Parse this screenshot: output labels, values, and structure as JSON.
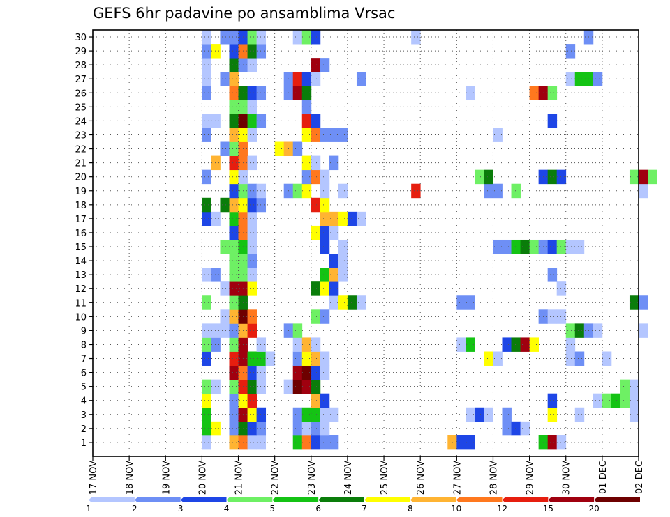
{
  "chart_data": {
    "type": "heatmap",
    "title": "GEFS 6hr padavine po ansamblima Vrsac",
    "xlabel": "",
    "ylabel": "",
    "x_ticks": [
      "17 NOV",
      "18 NOV",
      "19 NOV",
      "20 NOV",
      "21 NOV",
      "22 NOV",
      "23 NOV",
      "24 NOV",
      "25 NOV",
      "26 NOV",
      "27 NOV",
      "28 NOV",
      "29 NOV",
      "30 NOV",
      "01 DEC",
      "02 DEC"
    ],
    "y_ticks": [
      "1",
      "2",
      "3",
      "4",
      "5",
      "6",
      "7",
      "8",
      "9",
      "10",
      "11",
      "12",
      "13",
      "14",
      "15",
      "16",
      "17",
      "18",
      "19",
      "20",
      "21",
      "22",
      "23",
      "24",
      "25",
      "26",
      "27",
      "28",
      "29",
      "30"
    ],
    "xlim": [
      "17 NOV",
      "02 DEC"
    ],
    "ylim": [
      0,
      30
    ],
    "grid": true,
    "time_step_hours": 6,
    "color_levels": [
      "1",
      "2",
      "3",
      "4",
      "5",
      "6",
      "7",
      "8",
      "10",
      "12",
      "15",
      "20"
    ],
    "colors": [
      "#b4c6ff",
      "#6e8ff5",
      "#1e46e6",
      "#6ef064",
      "#14c314",
      "#0a7d0a",
      "#ffff00",
      "#ffb432",
      "#ff781e",
      "#e61e0f",
      "#a0000f",
      "#6e0000"
    ],
    "cells_note": "member: [day_offset_from_17NOV, class_index]",
    "cells": {
      "1": [
        [
          3.0,
          0
        ],
        [
          3.75,
          7
        ],
        [
          4.0,
          8
        ],
        [
          4.25,
          0
        ],
        [
          4.5,
          0
        ],
        [
          5.5,
          4
        ],
        [
          5.75,
          8
        ],
        [
          6.0,
          2
        ],
        [
          6.25,
          1
        ],
        [
          6.5,
          1
        ],
        [
          9.75,
          7
        ],
        [
          10.0,
          2
        ],
        [
          10.25,
          2
        ],
        [
          12.25,
          4
        ],
        [
          12.5,
          10
        ],
        [
          12.75,
          0
        ]
      ],
      "2": [
        [
          3.0,
          4
        ],
        [
          3.25,
          6
        ],
        [
          3.75,
          1
        ],
        [
          4.0,
          5
        ],
        [
          4.25,
          2
        ],
        [
          4.5,
          1
        ],
        [
          5.5,
          1
        ],
        [
          5.75,
          0
        ],
        [
          6.0,
          1
        ],
        [
          6.25,
          0
        ],
        [
          11.25,
          1
        ],
        [
          11.5,
          2
        ],
        [
          11.75,
          0
        ]
      ],
      "3": [
        [
          3.0,
          4
        ],
        [
          3.75,
          1
        ],
        [
          4.0,
          10
        ],
        [
          4.25,
          6
        ],
        [
          4.5,
          2
        ],
        [
          5.5,
          1
        ],
        [
          5.75,
          4
        ],
        [
          6.0,
          4
        ],
        [
          6.25,
          0
        ],
        [
          6.5,
          0
        ],
        [
          10.25,
          0
        ],
        [
          10.5,
          2
        ],
        [
          10.75,
          0
        ],
        [
          11.25,
          1
        ],
        [
          12.5,
          6
        ],
        [
          13.25,
          0
        ],
        [
          14.75,
          0
        ]
      ],
      "4": [
        [
          3.0,
          6
        ],
        [
          3.75,
          1
        ],
        [
          4.0,
          6
        ],
        [
          4.25,
          9
        ],
        [
          6.0,
          7
        ],
        [
          6.25,
          2
        ],
        [
          12.5,
          2
        ],
        [
          13.75,
          0
        ],
        [
          14.0,
          3
        ],
        [
          14.25,
          4
        ],
        [
          14.5,
          3
        ],
        [
          14.75,
          0
        ]
      ],
      "5": [
        [
          3.0,
          3
        ],
        [
          3.25,
          0
        ],
        [
          3.75,
          3
        ],
        [
          4.0,
          9
        ],
        [
          4.25,
          5
        ],
        [
          4.5,
          0
        ],
        [
          5.25,
          0
        ],
        [
          5.5,
          11
        ],
        [
          5.75,
          10
        ],
        [
          6.0,
          5
        ],
        [
          14.5,
          3
        ],
        [
          14.75,
          0
        ]
      ],
      "6": [
        [
          3.75,
          10
        ],
        [
          4.0,
          8
        ],
        [
          4.25,
          2
        ],
        [
          4.5,
          0
        ],
        [
          5.5,
          10
        ],
        [
          5.75,
          11
        ],
        [
          6.0,
          2
        ],
        [
          6.25,
          0
        ]
      ],
      "7": [
        [
          3.0,
          2
        ],
        [
          3.75,
          9
        ],
        [
          4.0,
          10
        ],
        [
          4.25,
          4
        ],
        [
          4.5,
          4
        ],
        [
          4.75,
          0
        ],
        [
          5.5,
          1
        ],
        [
          5.75,
          6
        ],
        [
          6.0,
          7
        ],
        [
          6.25,
          0
        ],
        [
          10.75,
          6
        ],
        [
          11.0,
          0
        ],
        [
          13.0,
          0
        ],
        [
          13.25,
          1
        ],
        [
          14.0,
          0
        ]
      ],
      "8": [
        [
          3.0,
          3
        ],
        [
          3.25,
          1
        ],
        [
          3.75,
          3
        ],
        [
          4.0,
          10
        ],
        [
          4.5,
          0
        ],
        [
          5.5,
          0
        ],
        [
          5.75,
          7
        ],
        [
          6.0,
          0
        ],
        [
          10.0,
          0
        ],
        [
          10.25,
          4
        ],
        [
          11.25,
          2
        ],
        [
          11.5,
          5
        ],
        [
          11.75,
          10
        ],
        [
          12.0,
          6
        ],
        [
          13.0,
          0
        ]
      ],
      "9": [
        [
          3.0,
          0
        ],
        [
          3.25,
          0
        ],
        [
          3.5,
          0
        ],
        [
          3.75,
          1
        ],
        [
          4.0,
          7
        ],
        [
          4.25,
          9
        ],
        [
          5.25,
          1
        ],
        [
          5.5,
          3
        ],
        [
          13.0,
          3
        ],
        [
          13.25,
          5
        ],
        [
          13.5,
          1
        ],
        [
          13.75,
          0
        ],
        [
          15.0,
          0
        ]
      ],
      "10": [
        [
          3.5,
          0
        ],
        [
          3.75,
          7
        ],
        [
          4.0,
          11
        ],
        [
          4.25,
          8
        ],
        [
          6.0,
          3
        ],
        [
          6.25,
          1
        ],
        [
          12.25,
          1
        ],
        [
          12.5,
          0
        ],
        [
          12.75,
          0
        ]
      ],
      "11": [
        [
          3.0,
          3
        ],
        [
          3.75,
          3
        ],
        [
          4.0,
          5
        ],
        [
          6.5,
          0
        ],
        [
          6.75,
          6
        ],
        [
          7.0,
          5
        ],
        [
          7.25,
          0
        ],
        [
          10.0,
          1
        ],
        [
          10.25,
          1
        ],
        [
          14.75,
          5
        ],
        [
          15.0,
          1
        ]
      ],
      "12": [
        [
          3.5,
          0
        ],
        [
          3.75,
          10
        ],
        [
          4.0,
          10
        ],
        [
          4.25,
          6
        ],
        [
          6.0,
          5
        ],
        [
          6.25,
          6
        ],
        [
          6.5,
          2
        ],
        [
          12.75,
          0
        ]
      ],
      "13": [
        [
          3.0,
          0
        ],
        [
          3.25,
          1
        ],
        [
          3.75,
          3
        ],
        [
          4.0,
          3
        ],
        [
          4.25,
          0
        ],
        [
          6.25,
          4
        ],
        [
          6.5,
          7
        ],
        [
          6.75,
          0
        ],
        [
          12.5,
          1
        ]
      ],
      "14": [
        [
          3.75,
          3
        ],
        [
          4.0,
          3
        ],
        [
          4.25,
          1
        ],
        [
          6.5,
          2
        ],
        [
          6.75,
          0
        ]
      ],
      "15": [
        [
          3.5,
          3
        ],
        [
          3.75,
          3
        ],
        [
          4.0,
          4
        ],
        [
          4.25,
          0
        ],
        [
          6.25,
          2
        ],
        [
          6.75,
          0
        ],
        [
          11.0,
          1
        ],
        [
          11.25,
          1
        ],
        [
          11.5,
          4
        ],
        [
          11.75,
          5
        ],
        [
          12.0,
          3
        ],
        [
          12.25,
          1
        ],
        [
          12.5,
          2
        ],
        [
          12.75,
          3
        ],
        [
          13.0,
          0
        ],
        [
          13.25,
          0
        ]
      ],
      "16": [
        [
          3.75,
          2
        ],
        [
          4.0,
          8
        ],
        [
          4.25,
          0
        ],
        [
          6.0,
          6
        ],
        [
          6.25,
          2
        ],
        [
          6.5,
          0
        ]
      ],
      "17": [
        [
          3.0,
          2
        ],
        [
          3.25,
          0
        ],
        [
          3.75,
          4
        ],
        [
          4.0,
          8
        ],
        [
          4.25,
          0
        ],
        [
          6.25,
          7
        ],
        [
          6.5,
          7
        ],
        [
          6.75,
          6
        ],
        [
          7.0,
          2
        ],
        [
          7.25,
          0
        ]
      ],
      "18": [
        [
          3.0,
          5
        ],
        [
          3.5,
          5
        ],
        [
          3.75,
          7
        ],
        [
          4.0,
          6
        ],
        [
          4.25,
          2
        ],
        [
          4.5,
          1
        ],
        [
          6.0,
          9
        ],
        [
          6.25,
          6
        ]
      ],
      "19": [
        [
          3.75,
          2
        ],
        [
          4.0,
          3
        ],
        [
          4.25,
          1
        ],
        [
          4.5,
          0
        ],
        [
          5.25,
          1
        ],
        [
          5.5,
          3
        ],
        [
          5.75,
          6
        ],
        [
          6.25,
          0
        ],
        [
          6.75,
          0
        ],
        [
          8.75,
          9
        ],
        [
          10.75,
          1
        ],
        [
          11.0,
          1
        ],
        [
          11.5,
          3
        ],
        [
          15.0,
          0
        ]
      ],
      "20": [
        [
          3.0,
          1
        ],
        [
          3.75,
          6
        ],
        [
          4.0,
          0
        ],
        [
          5.75,
          1
        ],
        [
          6.0,
          8
        ],
        [
          6.25,
          0
        ],
        [
          10.5,
          3
        ],
        [
          10.75,
          5
        ],
        [
          12.25,
          2
        ],
        [
          12.5,
          5
        ],
        [
          12.75,
          2
        ],
        [
          14.75,
          3
        ],
        [
          15.0,
          10
        ],
        [
          15.25,
          3
        ]
      ],
      "21": [
        [
          3.25,
          7
        ],
        [
          3.75,
          9
        ],
        [
          4.0,
          8
        ],
        [
          4.25,
          0
        ],
        [
          5.75,
          6
        ],
        [
          6.0,
          0
        ],
        [
          6.5,
          1
        ]
      ],
      "22": [
        [
          3.5,
          1
        ],
        [
          3.75,
          3
        ],
        [
          4.0,
          8
        ],
        [
          5.0,
          6
        ],
        [
          5.25,
          7
        ],
        [
          5.5,
          1
        ]
      ],
      "23": [
        [
          3.0,
          1
        ],
        [
          3.75,
          7
        ],
        [
          4.0,
          6
        ],
        [
          4.25,
          0
        ],
        [
          5.75,
          6
        ],
        [
          6.0,
          8
        ],
        [
          6.25,
          1
        ],
        [
          6.5,
          1
        ],
        [
          6.75,
          1
        ],
        [
          11.0,
          0
        ]
      ],
      "24": [
        [
          3.0,
          0
        ],
        [
          3.25,
          0
        ],
        [
          3.75,
          5
        ],
        [
          4.0,
          11
        ],
        [
          4.25,
          4
        ],
        [
          4.5,
          1
        ],
        [
          5.75,
          9
        ],
        [
          6.0,
          2
        ],
        [
          12.5,
          2
        ]
      ],
      "25": [
        [
          3.75,
          3
        ],
        [
          4.0,
          3
        ],
        [
          4.25,
          0
        ],
        [
          5.75,
          1
        ]
      ],
      "26": [
        [
          3.0,
          1
        ],
        [
          3.75,
          8
        ],
        [
          4.0,
          5
        ],
        [
          4.25,
          2
        ],
        [
          4.5,
          1
        ],
        [
          5.25,
          1
        ],
        [
          5.5,
          10
        ],
        [
          5.75,
          5
        ],
        [
          10.25,
          0
        ],
        [
          12.0,
          8
        ],
        [
          12.25,
          10
        ],
        [
          12.5,
          3
        ]
      ],
      "27": [
        [
          3.0,
          0
        ],
        [
          3.5,
          1
        ],
        [
          3.75,
          7
        ],
        [
          5.25,
          1
        ],
        [
          5.5,
          9
        ],
        [
          5.75,
          2
        ],
        [
          6.0,
          0
        ],
        [
          7.25,
          1
        ],
        [
          13.0,
          0
        ],
        [
          13.25,
          4
        ],
        [
          13.5,
          4
        ],
        [
          13.75,
          1
        ]
      ],
      "28": [
        [
          3.0,
          0
        ],
        [
          3.75,
          5
        ],
        [
          4.0,
          1
        ],
        [
          4.25,
          0
        ],
        [
          6.0,
          10
        ],
        [
          6.25,
          1
        ]
      ],
      "29": [
        [
          3.0,
          1
        ],
        [
          3.25,
          6
        ],
        [
          3.75,
          2
        ],
        [
          4.0,
          8
        ],
        [
          4.25,
          5
        ],
        [
          4.5,
          1
        ],
        [
          13.0,
          1
        ]
      ],
      "30": [
        [
          3.0,
          0
        ],
        [
          3.5,
          1
        ],
        [
          3.75,
          1
        ],
        [
          4.0,
          2
        ],
        [
          4.25,
          3
        ],
        [
          4.5,
          0
        ],
        [
          5.5,
          0
        ],
        [
          5.75,
          3
        ],
        [
          6.0,
          2
        ],
        [
          8.75,
          0
        ],
        [
          13.5,
          1
        ]
      ]
    }
  }
}
